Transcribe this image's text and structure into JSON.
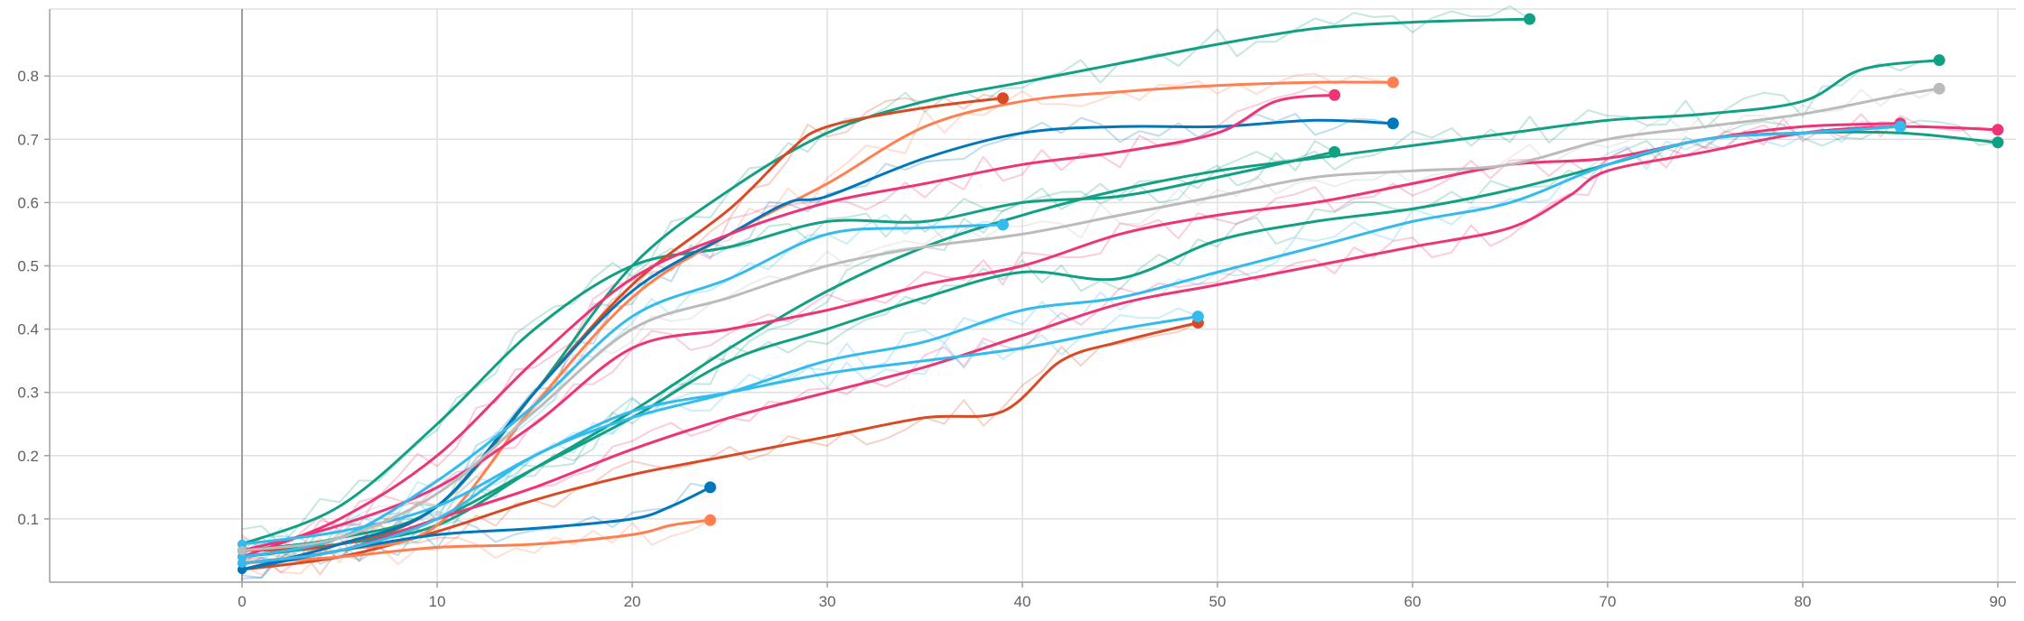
{
  "chart_data": {
    "type": "line",
    "title": "",
    "xlabel": "",
    "ylabel": "",
    "xlim": [
      -10,
      91
    ],
    "ylim": [
      0,
      0.9
    ],
    "x_ticks": [
      0,
      10,
      20,
      30,
      40,
      50,
      60,
      70,
      80,
      90
    ],
    "y_ticks": [
      0.1,
      0.2,
      0.3,
      0.4,
      0.5,
      0.6,
      0.7,
      0.8
    ],
    "x_tick_labels": [
      "0",
      "10",
      "20",
      "30",
      "40",
      "50",
      "60",
      "70",
      "80",
      "90"
    ],
    "y_tick_labels": [
      "0.1",
      "0.2",
      "0.3",
      "0.4",
      "0.5",
      "0.6",
      "0.7",
      "0.8"
    ],
    "grid": true,
    "legend": "none",
    "series": [
      {
        "color": "#12a085",
        "points": [
          [
            0,
            0.05
          ],
          [
            5,
            0.07
          ],
          [
            10,
            0.12
          ],
          [
            15,
            0.3
          ],
          [
            20,
            0.5
          ],
          [
            25,
            0.62
          ],
          [
            30,
            0.71
          ],
          [
            35,
            0.76
          ],
          [
            40,
            0.79
          ],
          [
            45,
            0.82
          ],
          [
            50,
            0.85
          ],
          [
            55,
            0.875
          ],
          [
            60,
            0.885
          ],
          [
            66,
            0.89
          ]
        ]
      },
      {
        "color": "#12a085",
        "points": [
          [
            0,
            0.04
          ],
          [
            5,
            0.06
          ],
          [
            10,
            0.09
          ],
          [
            15,
            0.18
          ],
          [
            20,
            0.27
          ],
          [
            25,
            0.37
          ],
          [
            30,
            0.46
          ],
          [
            35,
            0.53
          ],
          [
            40,
            0.58
          ],
          [
            45,
            0.62
          ],
          [
            50,
            0.65
          ],
          [
            55,
            0.67
          ],
          [
            60,
            0.69
          ],
          [
            65,
            0.71
          ],
          [
            70,
            0.73
          ],
          [
            75,
            0.74
          ],
          [
            80,
            0.76
          ],
          [
            83,
            0.81
          ],
          [
            87,
            0.825
          ]
        ]
      },
      {
        "color": "#12a085",
        "points": [
          [
            0,
            0.06
          ],
          [
            5,
            0.12
          ],
          [
            10,
            0.25
          ],
          [
            15,
            0.4
          ],
          [
            20,
            0.5
          ],
          [
            25,
            0.53
          ],
          [
            30,
            0.57
          ],
          [
            35,
            0.57
          ],
          [
            40,
            0.6
          ],
          [
            45,
            0.61
          ],
          [
            50,
            0.64
          ],
          [
            56,
            0.68
          ]
        ]
      },
      {
        "color": "#12a085",
        "points": [
          [
            0,
            0.05
          ],
          [
            5,
            0.06
          ],
          [
            10,
            0.1
          ],
          [
            15,
            0.18
          ],
          [
            20,
            0.26
          ],
          [
            25,
            0.35
          ],
          [
            30,
            0.4
          ],
          [
            35,
            0.45
          ],
          [
            40,
            0.49
          ],
          [
            45,
            0.48
          ],
          [
            50,
            0.54
          ],
          [
            55,
            0.57
          ],
          [
            60,
            0.59
          ],
          [
            65,
            0.62
          ],
          [
            70,
            0.66
          ],
          [
            75,
            0.7
          ],
          [
            80,
            0.71
          ],
          [
            85,
            0.71
          ],
          [
            90,
            0.695
          ]
        ]
      },
      {
        "color": "#d84a23",
        "points": [
          [
            0,
            0.05
          ],
          [
            5,
            0.06
          ],
          [
            10,
            0.12
          ],
          [
            15,
            0.3
          ],
          [
            20,
            0.47
          ],
          [
            25,
            0.59
          ],
          [
            28,
            0.68
          ],
          [
            30,
            0.72
          ],
          [
            35,
            0.75
          ],
          [
            39,
            0.765
          ]
        ]
      },
      {
        "color": "#d84a23",
        "points": [
          [
            0,
            0.02
          ],
          [
            5,
            0.04
          ],
          [
            10,
            0.08
          ],
          [
            15,
            0.13
          ],
          [
            20,
            0.17
          ],
          [
            25,
            0.2
          ],
          [
            30,
            0.23
          ],
          [
            35,
            0.26
          ],
          [
            39,
            0.27
          ],
          [
            42,
            0.35
          ],
          [
            45,
            0.38
          ],
          [
            49,
            0.41
          ]
        ]
      },
      {
        "color": "#ff7f50",
        "points": [
          [
            0,
            0.03
          ],
          [
            5,
            0.05
          ],
          [
            10,
            0.09
          ],
          [
            15,
            0.28
          ],
          [
            20,
            0.45
          ],
          [
            25,
            0.55
          ],
          [
            30,
            0.63
          ],
          [
            35,
            0.72
          ],
          [
            40,
            0.76
          ],
          [
            45,
            0.775
          ],
          [
            50,
            0.785
          ],
          [
            55,
            0.79
          ],
          [
            59,
            0.79
          ]
        ]
      },
      {
        "color": "#ff7f50",
        "points": [
          [
            0,
            0.03
          ],
          [
            5,
            0.04
          ],
          [
            10,
            0.055
          ],
          [
            15,
            0.06
          ],
          [
            20,
            0.075
          ],
          [
            22,
            0.09
          ],
          [
            24,
            0.098
          ]
        ]
      },
      {
        "color": "#0077bb",
        "points": [
          [
            0,
            0.02
          ],
          [
            5,
            0.06
          ],
          [
            10,
            0.12
          ],
          [
            15,
            0.3
          ],
          [
            20,
            0.46
          ],
          [
            25,
            0.55
          ],
          [
            28,
            0.6
          ],
          [
            30,
            0.61
          ],
          [
            35,
            0.67
          ],
          [
            40,
            0.71
          ],
          [
            45,
            0.72
          ],
          [
            50,
            0.72
          ],
          [
            55,
            0.73
          ],
          [
            59,
            0.725
          ]
        ]
      },
      {
        "color": "#0077bb",
        "points": [
          [
            0,
            0.02
          ],
          [
            5,
            0.05
          ],
          [
            10,
            0.075
          ],
          [
            15,
            0.085
          ],
          [
            20,
            0.1
          ],
          [
            22,
            0.12
          ],
          [
            24,
            0.15
          ]
        ]
      },
      {
        "color": "#ee3377",
        "points": [
          [
            0,
            0.04
          ],
          [
            5,
            0.1
          ],
          [
            10,
            0.2
          ],
          [
            15,
            0.35
          ],
          [
            20,
            0.48
          ],
          [
            25,
            0.55
          ],
          [
            30,
            0.6
          ],
          [
            35,
            0.63
          ],
          [
            40,
            0.66
          ],
          [
            45,
            0.68
          ],
          [
            50,
            0.71
          ],
          [
            53,
            0.76
          ],
          [
            56,
            0.77
          ]
        ]
      },
      {
        "color": "#ee3377",
        "points": [
          [
            0,
            0.03
          ],
          [
            5,
            0.05
          ],
          [
            10,
            0.1
          ],
          [
            15,
            0.15
          ],
          [
            20,
            0.21
          ],
          [
            25,
            0.26
          ],
          [
            30,
            0.3
          ],
          [
            35,
            0.34
          ],
          [
            40,
            0.39
          ],
          [
            45,
            0.44
          ],
          [
            50,
            0.47
          ],
          [
            55,
            0.5
          ],
          [
            60,
            0.53
          ],
          [
            65,
            0.56
          ],
          [
            68,
            0.61
          ],
          [
            70,
            0.65
          ],
          [
            75,
            0.68
          ],
          [
            80,
            0.71
          ],
          [
            85,
            0.72
          ],
          [
            90,
            0.715
          ]
        ]
      },
      {
        "color": "#ee3377",
        "points": [
          [
            0,
            0.05
          ],
          [
            5,
            0.09
          ],
          [
            10,
            0.15
          ],
          [
            15,
            0.25
          ],
          [
            20,
            0.37
          ],
          [
            25,
            0.4
          ],
          [
            30,
            0.43
          ],
          [
            35,
            0.47
          ],
          [
            40,
            0.5
          ],
          [
            45,
            0.55
          ],
          [
            50,
            0.58
          ],
          [
            55,
            0.6
          ],
          [
            60,
            0.63
          ],
          [
            65,
            0.66
          ],
          [
            70,
            0.67
          ],
          [
            75,
            0.7
          ],
          [
            80,
            0.72
          ],
          [
            85,
            0.725
          ]
        ]
      },
      {
        "color": "#33bbee",
        "points": [
          [
            0,
            0.04
          ],
          [
            5,
            0.07
          ],
          [
            10,
            0.16
          ],
          [
            15,
            0.28
          ],
          [
            20,
            0.42
          ],
          [
            25,
            0.48
          ],
          [
            30,
            0.55
          ],
          [
            35,
            0.56
          ],
          [
            39,
            0.565
          ]
        ]
      },
      {
        "color": "#33bbee",
        "points": [
          [
            0,
            0.03
          ],
          [
            5,
            0.05
          ],
          [
            10,
            0.1
          ],
          [
            15,
            0.2
          ],
          [
            20,
            0.26
          ],
          [
            25,
            0.3
          ],
          [
            30,
            0.35
          ],
          [
            35,
            0.38
          ],
          [
            40,
            0.43
          ],
          [
            45,
            0.45
          ],
          [
            50,
            0.49
          ],
          [
            55,
            0.53
          ],
          [
            60,
            0.57
          ],
          [
            65,
            0.6
          ],
          [
            70,
            0.66
          ],
          [
            75,
            0.7
          ],
          [
            80,
            0.71
          ],
          [
            85,
            0.72
          ]
        ]
      },
      {
        "color": "#33bbee",
        "points": [
          [
            0,
            0.06
          ],
          [
            5,
            0.08
          ],
          [
            10,
            0.12
          ],
          [
            15,
            0.2
          ],
          [
            20,
            0.27
          ],
          [
            25,
            0.3
          ],
          [
            30,
            0.33
          ],
          [
            35,
            0.35
          ],
          [
            40,
            0.37
          ],
          [
            45,
            0.4
          ],
          [
            49,
            0.42
          ]
        ]
      },
      {
        "color": "#bbbbbb",
        "points": [
          [
            0,
            0.05
          ],
          [
            5,
            0.07
          ],
          [
            10,
            0.14
          ],
          [
            15,
            0.27
          ],
          [
            20,
            0.4
          ],
          [
            25,
            0.45
          ],
          [
            30,
            0.5
          ],
          [
            35,
            0.53
          ],
          [
            40,
            0.55
          ],
          [
            45,
            0.58
          ],
          [
            50,
            0.61
          ],
          [
            55,
            0.64
          ],
          [
            60,
            0.65
          ],
          [
            65,
            0.66
          ],
          [
            70,
            0.7
          ],
          [
            75,
            0.72
          ],
          [
            80,
            0.74
          ],
          [
            85,
            0.77
          ],
          [
            87,
            0.78
          ]
        ]
      }
    ]
  }
}
